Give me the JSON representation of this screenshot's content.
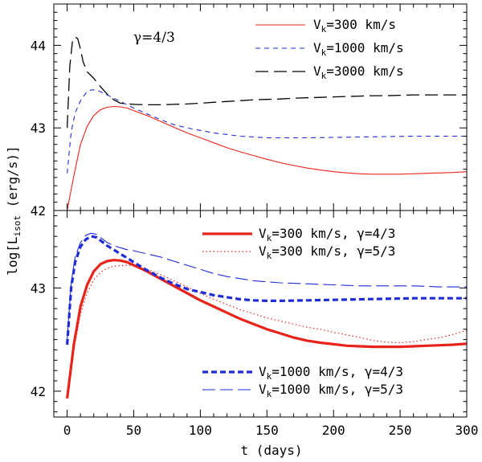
{
  "chart_data": {
    "type": "line",
    "shared": {
      "xlabel": "t (days)",
      "ylabel_main": "log[L",
      "ylabel_sub": "isot",
      "ylabel_tail": " (erg/s)]",
      "xlim": [
        -10,
        300
      ],
      "xticks": [
        0,
        50,
        100,
        150,
        200,
        250,
        300
      ],
      "xticks_minor_step": 10
    },
    "panels": [
      {
        "id": "top",
        "annotation": "γ=4/3",
        "ylim": [
          42,
          44.5
        ],
        "yticks": [
          42,
          43,
          44
        ],
        "legend_position": "top-right",
        "series": [
          {
            "name_main": "V",
            "name_sub": "k",
            "name_tail": "=300 km/s",
            "color": "#e8231a",
            "dash": "solid",
            "width": 1.1,
            "x": [
              0,
              5,
              10,
              15,
              20,
              25,
              30,
              35,
              40,
              45,
              50,
              60,
              70,
              80,
              90,
              100,
              110,
              120,
              130,
              140,
              150,
              160,
              170,
              180,
              190,
              200,
              210,
              220,
              230,
              240,
              250,
              260,
              270,
              280,
              290,
              300
            ],
            "y": [
              42.0,
              42.42,
              42.8,
              43.02,
              43.15,
              43.22,
              43.25,
              43.26,
              43.255,
              43.24,
              43.21,
              43.15,
              43.08,
              43.01,
              42.94,
              42.88,
              42.82,
              42.76,
              42.71,
              42.665,
              42.62,
              42.58,
              42.545,
              42.515,
              42.49,
              42.47,
              42.455,
              42.445,
              42.44,
              42.44,
              42.44,
              42.445,
              42.45,
              42.455,
              42.46,
              42.47
            ]
          },
          {
            "name_main": "V",
            "name_sub": "k",
            "name_tail": "=1000 km/s",
            "color": "#1f2bd6",
            "dash": "6,5",
            "width": 1.1,
            "x": [
              0,
              3,
              6,
              10,
              14,
              18,
              22,
              26,
              30,
              35,
              40,
              45,
              50,
              60,
              70,
              80,
              90,
              100,
              110,
              120,
              130,
              140,
              150,
              160,
              180,
              200,
              220,
              240,
              260,
              280,
              300
            ],
            "y": [
              42.45,
              42.95,
              43.18,
              43.33,
              43.42,
              43.46,
              43.46,
              43.43,
              43.4,
              43.36,
              43.32,
              43.28,
              43.24,
              43.17,
              43.1,
              43.04,
              43.0,
              42.97,
              42.94,
              42.92,
              42.9,
              42.89,
              42.88,
              42.88,
              42.88,
              42.885,
              42.89,
              42.895,
              42.9,
              42.9,
              42.9
            ]
          },
          {
            "name_main": "V",
            "name_sub": "k",
            "name_tail": "=3000 km/s",
            "color": "#000000",
            "dash": "16,7",
            "width": 1.3,
            "x": [
              0,
              2,
              4,
              6,
              8,
              10,
              12,
              15,
              20,
              25,
              30,
              35,
              40,
              50,
              60,
              70,
              80,
              90,
              100,
              110,
              120,
              130,
              140,
              150,
              160,
              170,
              180,
              190,
              200,
              210,
              220,
              230,
              240,
              250,
              260,
              270,
              280,
              290,
              300
            ],
            "y": [
              43.0,
              43.75,
              44.05,
              44.1,
              44.08,
              43.95,
              43.8,
              43.68,
              43.6,
              43.5,
              43.41,
              43.34,
              43.3,
              43.285,
              43.28,
              43.28,
              43.285,
              43.29,
              43.3,
              43.31,
              43.32,
              43.33,
              43.34,
              43.345,
              43.35,
              43.36,
              43.365,
              43.37,
              43.375,
              43.38,
              43.385,
              43.39,
              43.39,
              43.395,
              43.4,
              43.4,
              43.4,
              43.4,
              43.4
            ]
          }
        ]
      },
      {
        "id": "bottom",
        "ylim": [
          41.75,
          43.75
        ],
        "yticks": [
          42,
          43
        ],
        "legend_position": "top-right and bottom-right",
        "series": [
          {
            "name_main": "V",
            "name_sub": "k",
            "name_tail": "=300 km/s, γ=4/3",
            "color": "#e8231a",
            "dash": "solid",
            "width": 3.2,
            "x": [
              0,
              5,
              10,
              15,
              20,
              25,
              30,
              35,
              40,
              45,
              50,
              60,
              70,
              80,
              90,
              100,
              110,
              120,
              130,
              140,
              150,
              160,
              170,
              180,
              190,
              200,
              210,
              220,
              230,
              240,
              250,
              260,
              270,
              280,
              290,
              300
            ],
            "y": [
              41.93,
              42.45,
              42.82,
              43.03,
              43.16,
              43.23,
              43.26,
              43.27,
              43.265,
              43.25,
              43.22,
              43.16,
              43.09,
              43.02,
              42.95,
              42.88,
              42.82,
              42.76,
              42.7,
              42.65,
              42.6,
              42.56,
              42.52,
              42.49,
              42.47,
              42.455,
              42.44,
              42.435,
              42.43,
              42.43,
              42.43,
              42.435,
              42.44,
              42.445,
              42.45,
              42.46
            ]
          },
          {
            "name_main": "V",
            "name_sub": "k",
            "name_tail": "=300 km/s, γ=5/3",
            "color": "#e8231a",
            "dash": "1.5,3",
            "width": 1.2,
            "x": [
              0,
              5,
              10,
              15,
              20,
              25,
              30,
              35,
              40,
              45,
              50,
              60,
              70,
              80,
              90,
              100,
              110,
              120,
              130,
              140,
              150,
              160,
              170,
              180,
              190,
              200,
              210,
              220,
              230,
              240,
              250,
              260,
              270,
              280,
              290,
              300
            ],
            "y": [
              42.0,
              42.4,
              42.75,
              42.95,
              43.08,
              43.15,
              43.19,
              43.21,
              43.215,
              43.22,
              43.215,
              43.18,
              43.13,
              43.07,
              43.01,
              42.95,
              42.89,
              42.84,
              42.79,
              42.75,
              42.71,
              42.68,
              42.65,
              42.62,
              42.6,
              42.57,
              42.545,
              42.52,
              42.49,
              42.475,
              42.47,
              42.48,
              42.5,
              42.52,
              42.55,
              42.59
            ]
          },
          {
            "name_main": "V",
            "name_sub": "k",
            "name_tail": "=1000 km/s, γ=4/3",
            "color": "#1f2bd6",
            "dash": "7,4",
            "width": 3.2,
            "x": [
              0,
              3,
              6,
              10,
              14,
              18,
              22,
              26,
              30,
              35,
              40,
              45,
              50,
              60,
              70,
              80,
              90,
              100,
              110,
              120,
              130,
              140,
              150,
              160,
              180,
              200,
              220,
              240,
              260,
              280,
              300
            ],
            "y": [
              42.45,
              43.0,
              43.25,
              43.4,
              43.47,
              43.5,
              43.49,
              43.45,
              43.41,
              43.37,
              43.33,
              43.29,
              43.25,
              43.17,
              43.1,
              43.04,
              42.99,
              42.96,
              42.93,
              42.91,
              42.89,
              42.88,
              42.875,
              42.875,
              42.88,
              42.885,
              42.89,
              42.895,
              42.9,
              42.9,
              42.9
            ]
          },
          {
            "name_main": "V",
            "name_sub": "k",
            "name_tail": "=1000 km/s, γ=5/3",
            "color": "#1f2bd6",
            "dash": "16,6",
            "width": 1.1,
            "x": [
              0,
              3,
              6,
              10,
              14,
              18,
              22,
              26,
              30,
              35,
              40,
              45,
              50,
              60,
              70,
              80,
              90,
              100,
              110,
              120,
              130,
              140,
              150,
              160,
              170,
              180,
              190,
              200,
              210,
              220,
              230,
              240,
              250,
              260,
              270,
              280,
              290,
              300
            ],
            "y": [
              42.5,
              43.05,
              43.3,
              43.44,
              43.51,
              43.53,
              43.52,
              43.48,
              43.44,
              43.41,
              43.39,
              43.37,
              43.36,
              43.33,
              43.3,
              43.26,
              43.22,
              43.18,
              43.14,
              43.11,
              43.09,
              43.07,
              43.06,
              43.05,
              43.045,
              43.04,
              43.035,
              43.03,
              43.025,
              43.02,
              43.02,
              43.02,
              43.02,
              43.02,
              43.015,
              43.01,
              43.01,
              43.01
            ]
          }
        ]
      }
    ]
  }
}
